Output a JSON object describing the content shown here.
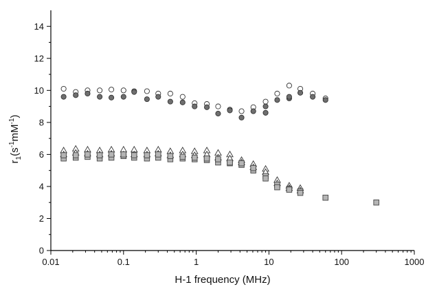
{
  "chart_data": {
    "type": "scatter",
    "title": "",
    "xlabel": "H-1 frequency (MHz)",
    "ylabel": {
      "main": "r",
      "sub": "1",
      "unit_open": "(s",
      "sup1": "-1",
      "unit_mid": "mM",
      "sup2": "-1",
      "unit_close": ")"
    },
    "x_scale": "log",
    "xlim": [
      0.01,
      1000
    ],
    "ylim": [
      0,
      15
    ],
    "grid": false,
    "legend": "none",
    "x_ticks": [
      0.01,
      0.1,
      1,
      10,
      100,
      1000
    ],
    "x_tick_labels": [
      "0.01",
      "0.1",
      "1",
      "10",
      "100",
      "1000"
    ],
    "y_ticks": [
      0,
      2,
      4,
      6,
      8,
      10,
      12,
      14
    ],
    "y_tick_labels": [
      "0",
      "2",
      "4",
      "6",
      "8",
      "10",
      "12",
      "14"
    ],
    "series": [
      {
        "marker": "open-circle",
        "color": "#ffffff",
        "x": [
          0.015,
          0.022,
          0.032,
          0.047,
          0.068,
          0.1,
          0.14,
          0.21,
          0.3,
          0.44,
          0.65,
          0.95,
          1.4,
          2.0,
          2.9,
          4.2,
          6.1,
          9.0,
          13,
          19,
          27,
          40,
          60
        ],
        "y": [
          10.1,
          9.9,
          10.0,
          10.0,
          10.05,
          10.0,
          9.95,
          9.95,
          9.8,
          9.8,
          9.6,
          9.2,
          9.15,
          9.0,
          8.8,
          8.7,
          8.95,
          9.3,
          9.8,
          10.3,
          10.1,
          9.8,
          9.5
        ]
      },
      {
        "marker": "filled-circle",
        "color": "#6f6f6f",
        "x": [
          0.015,
          0.022,
          0.032,
          0.047,
          0.068,
          0.1,
          0.14,
          0.21,
          0.3,
          0.44,
          0.65,
          0.95,
          1.4,
          2.0,
          2.9,
          4.2,
          6.1,
          9.0,
          13,
          19,
          27,
          40,
          60
        ],
        "y": [
          9.6,
          9.7,
          9.8,
          9.6,
          9.55,
          9.6,
          9.9,
          9.45,
          9.6,
          9.3,
          9.25,
          9.0,
          8.95,
          8.55,
          8.75,
          8.3,
          8.7,
          8.6,
          9.4,
          9.5,
          9.85,
          9.6,
          9.4
        ]
      },
      {
        "marker": "filled-circle",
        "color": "#6f6f6f",
        "x": [
          9.0,
          19
        ],
        "y": [
          9.0,
          9.6
        ]
      },
      {
        "marker": "open-triangle",
        "color": "#ffffff",
        "x": [
          0.015,
          0.022,
          0.032,
          0.047,
          0.068,
          0.1,
          0.14,
          0.21,
          0.3,
          0.44,
          0.65,
          0.95,
          1.4,
          2.0,
          2.9,
          4.2,
          6.1,
          9.0,
          13,
          19,
          27
        ],
        "y": [
          6.25,
          6.35,
          6.3,
          6.25,
          6.3,
          6.3,
          6.3,
          6.25,
          6.3,
          6.2,
          6.25,
          6.2,
          6.25,
          6.1,
          6.0,
          5.65,
          5.4,
          5.1,
          4.4,
          4.05,
          3.9
        ]
      },
      {
        "marker": "open-triangle",
        "color": "#ffffff",
        "x": [
          0.015,
          0.022,
          0.032,
          0.047,
          0.068,
          0.1,
          0.14,
          0.21,
          0.3,
          0.44,
          0.65,
          0.95,
          1.4,
          2.0,
          2.9,
          4.2,
          6.1,
          9.0,
          13,
          19,
          27
        ],
        "y": [
          6.0,
          6.1,
          6.05,
          6.0,
          6.05,
          6.0,
          6.0,
          6.0,
          6.05,
          5.95,
          6.0,
          5.95,
          6.0,
          5.8,
          5.75,
          5.5,
          5.2,
          4.9,
          4.2,
          3.9,
          3.75
        ]
      },
      {
        "marker": "filled-square",
        "color": "#b5b5b5",
        "x": [
          0.015,
          0.022,
          0.032,
          0.047,
          0.068,
          0.1,
          0.14,
          0.21,
          0.3,
          0.44,
          0.65,
          0.95,
          1.4,
          2.0,
          2.9,
          4.2,
          6.1,
          9.0,
          13,
          19,
          27,
          60,
          300
        ],
        "y": [
          5.75,
          5.8,
          5.85,
          5.75,
          5.8,
          5.9,
          5.8,
          5.75,
          5.8,
          5.7,
          5.75,
          5.7,
          5.65,
          5.5,
          5.45,
          5.35,
          5.0,
          4.65,
          4.1,
          3.85,
          3.7,
          3.3,
          3.0
        ]
      },
      {
        "marker": "filled-square",
        "color": "#b5b5b5",
        "x": [
          0.015,
          0.022,
          0.032,
          0.047,
          0.068,
          0.1,
          0.14,
          0.21,
          0.3,
          0.44,
          0.65,
          0.95,
          1.4,
          2.0,
          2.9,
          4.2,
          6.1,
          9.0,
          13,
          19,
          27
        ],
        "y": [
          5.95,
          5.95,
          6.0,
          5.95,
          6.0,
          6.0,
          5.95,
          5.95,
          6.0,
          5.9,
          5.85,
          5.8,
          5.75,
          5.7,
          5.5,
          5.45,
          5.15,
          4.5,
          3.95,
          3.8,
          3.6
        ]
      }
    ]
  }
}
